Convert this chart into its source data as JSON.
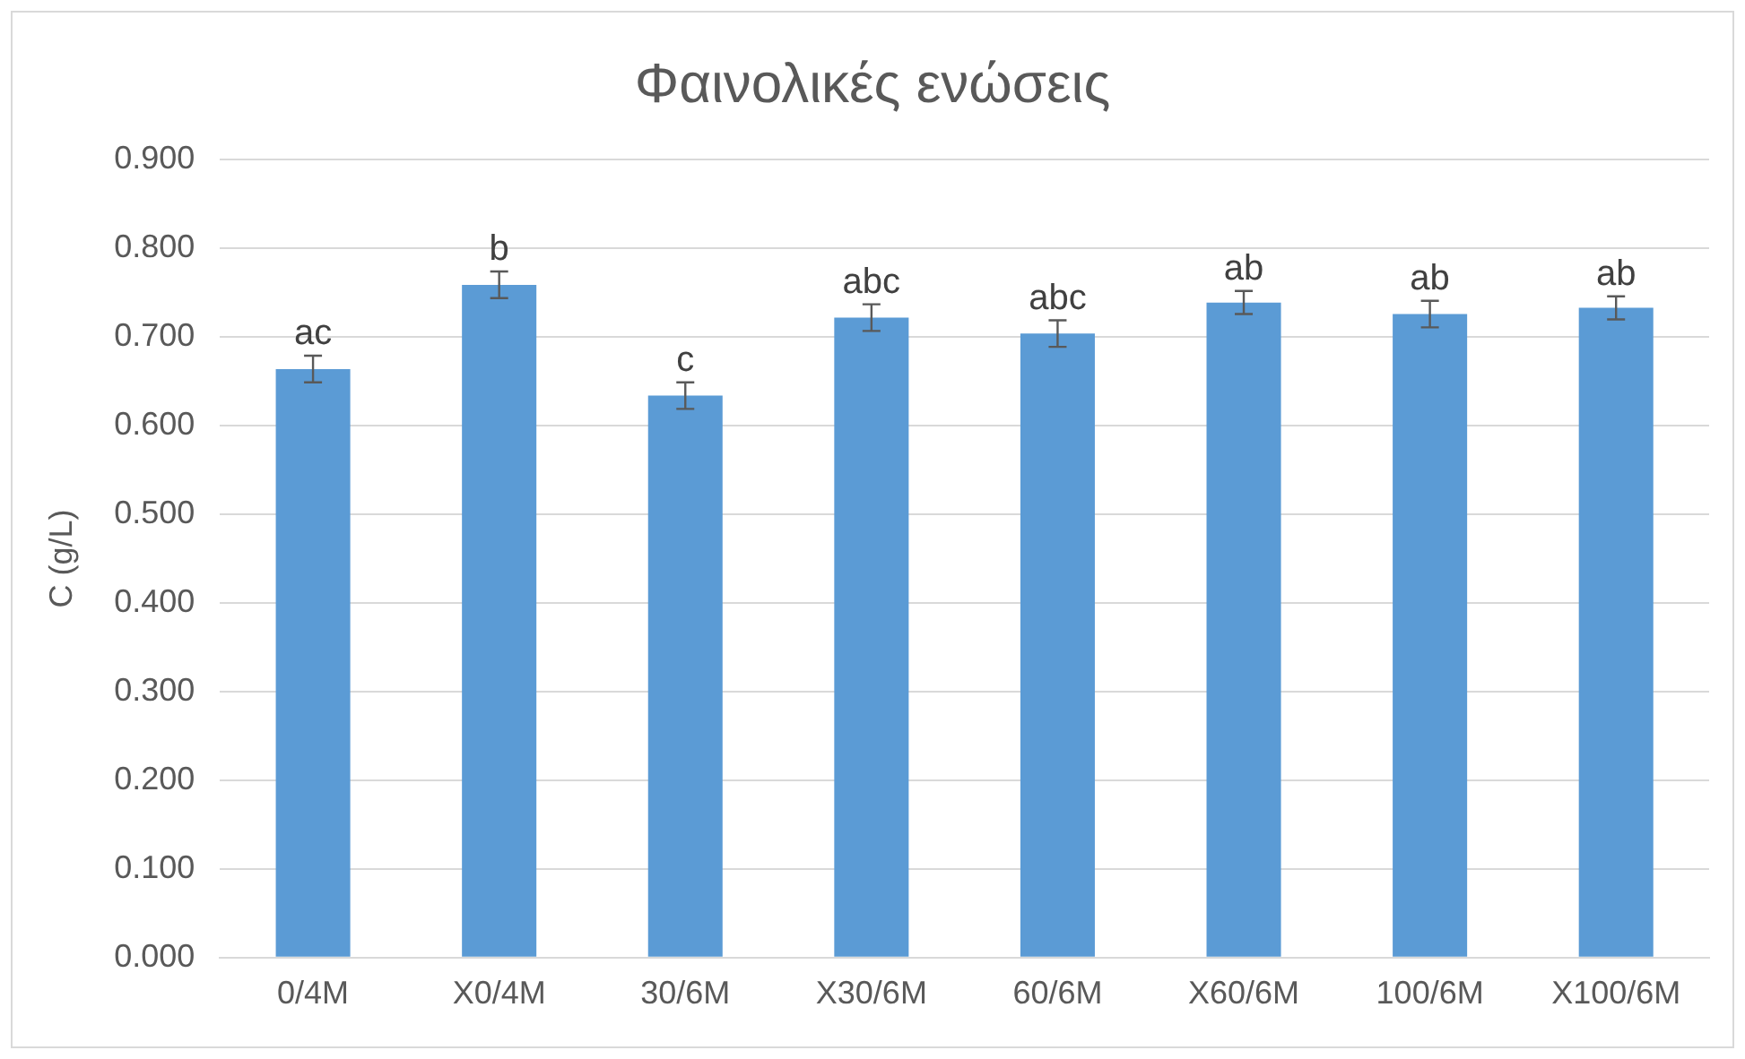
{
  "chart_data": {
    "type": "bar",
    "title": "Φαινολικές ενώσεις",
    "ylabel": "C (g/L)",
    "categories": [
      "0/4M",
      "X0/4M",
      "30/6M",
      "X30/6M",
      "60/6M",
      "X60/6M",
      "100/6M",
      "X100/6M"
    ],
    "values": [
      0.664,
      0.759,
      0.634,
      0.722,
      0.704,
      0.739,
      0.726,
      0.733
    ],
    "errors": [
      0.015,
      0.015,
      0.015,
      0.015,
      0.015,
      0.013,
      0.015,
      0.013
    ],
    "color": "#5b9bd5",
    "ylim": [
      0,
      0.9
    ],
    "yticks": [
      {
        "value": 0,
        "label": "0.000"
      },
      {
        "value": 0.1,
        "label": "0.100"
      },
      {
        "value": 0.2,
        "label": "0.200"
      },
      {
        "value": 0.3,
        "label": "0.300"
      },
      {
        "value": 0.4,
        "label": "0.400"
      },
      {
        "value": 0.5,
        "label": "0.500"
      },
      {
        "value": 0.6,
        "label": "0.600"
      },
      {
        "value": 0.7,
        "label": "0.700"
      },
      {
        "value": 0.8,
        "label": "0.800"
      },
      {
        "value": 0.9,
        "label": "0.900"
      }
    ],
    "grid": "y",
    "legend": false,
    "annotations": [
      {
        "text": "ac",
        "x": "0/4M",
        "y": 0.679
      },
      {
        "text": "b",
        "x": "X0/4M",
        "y": 0.774
      },
      {
        "text": "c",
        "x": "30/6M",
        "y": 0.649
      },
      {
        "text": "abc",
        "x": "X30/6M",
        "y": 0.737
      },
      {
        "text": "abc",
        "x": "60/6M",
        "y": 0.719
      },
      {
        "text": "ab",
        "x": "X60/6M",
        "y": 0.752
      },
      {
        "text": "ab",
        "x": "100/6M",
        "y": 0.741
      },
      {
        "text": "ab",
        "x": "X100/6M",
        "y": 0.746
      }
    ]
  }
}
